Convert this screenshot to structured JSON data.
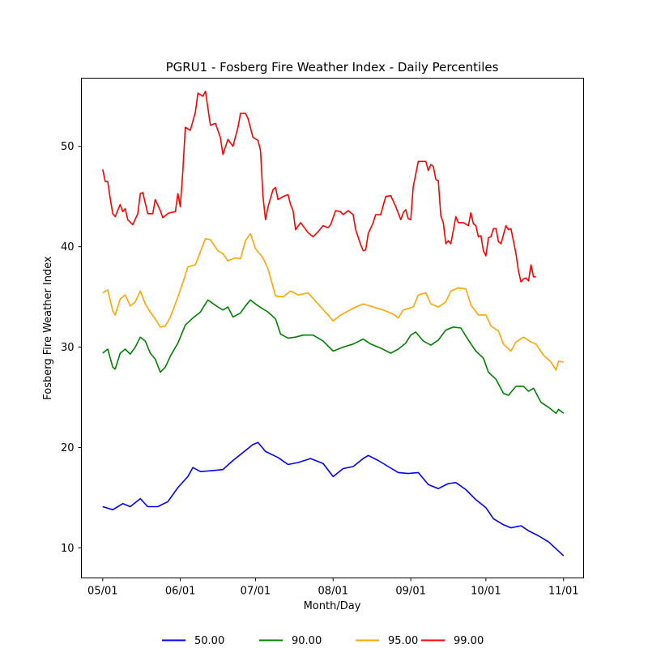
{
  "chart_data": {
    "type": "line",
    "title": "PGRU1 - Fosberg Fire Weather Index - Daily Percentiles",
    "xlabel": "Month/Day",
    "ylabel": "Fosberg Fire Weather Index",
    "x_ticks": [
      {
        "label": "05/01",
        "day": 0
      },
      {
        "label": "06/01",
        "day": 31
      },
      {
        "label": "07/01",
        "day": 61
      },
      {
        "label": "08/01",
        "day": 92
      },
      {
        "label": "09/01",
        "day": 123
      },
      {
        "label": "10/01",
        "day": 153
      },
      {
        "label": "11/01",
        "day": 184
      }
    ],
    "y_ticks": [
      10,
      20,
      30,
      40,
      50
    ],
    "xlim": [
      -8.5,
      192
    ],
    "ylim": [
      7,
      56.8
    ],
    "grid": false,
    "legend_position": "bottom-center",
    "series": [
      {
        "name": "50.00",
        "color": "#0000ff",
        "points": [
          [
            0,
            14.1
          ],
          [
            4,
            13.8
          ],
          [
            8,
            14.4
          ],
          [
            11,
            14.1
          ],
          [
            15,
            14.9
          ],
          [
            18,
            14.1
          ],
          [
            22,
            14.1
          ],
          [
            26,
            14.6
          ],
          [
            30,
            16.0
          ],
          [
            34,
            17.1
          ],
          [
            36,
            18.0
          ],
          [
            39,
            17.6
          ],
          [
            44,
            17.7
          ],
          [
            48,
            17.8
          ],
          [
            52,
            18.7
          ],
          [
            56,
            19.5
          ],
          [
            60,
            20.3
          ],
          [
            62,
            20.5
          ],
          [
            65,
            19.6
          ],
          [
            70,
            19.0
          ],
          [
            74,
            18.3
          ],
          [
            78,
            18.5
          ],
          [
            83,
            18.9
          ],
          [
            88,
            18.4
          ],
          [
            92,
            17.1
          ],
          [
            96,
            17.9
          ],
          [
            100,
            18.1
          ],
          [
            104,
            18.9
          ],
          [
            106,
            19.2
          ],
          [
            110,
            18.7
          ],
          [
            114,
            18.1
          ],
          [
            118,
            17.5
          ],
          [
            122,
            17.4
          ],
          [
            126,
            17.5
          ],
          [
            130,
            16.3
          ],
          [
            134,
            15.9
          ],
          [
            138,
            16.4
          ],
          [
            141,
            16.5
          ],
          [
            145,
            15.8
          ],
          [
            149,
            14.8
          ],
          [
            153,
            14.0
          ],
          [
            156,
            12.9
          ],
          [
            160,
            12.3
          ],
          [
            163,
            12.0
          ],
          [
            167,
            12.2
          ],
          [
            170,
            11.7
          ],
          [
            174,
            11.2
          ],
          [
            178,
            10.6
          ],
          [
            181,
            9.9
          ],
          [
            184,
            9.2
          ]
        ]
      },
      {
        "name": "90.00",
        "color": "#008000",
        "points": [
          [
            0,
            29.4
          ],
          [
            2,
            29.8
          ],
          [
            4,
            28.0
          ],
          [
            5,
            27.8
          ],
          [
            7,
            29.4
          ],
          [
            9,
            29.8
          ],
          [
            11,
            29.3
          ],
          [
            13,
            30.0
          ],
          [
            15,
            31.0
          ],
          [
            17,
            30.6
          ],
          [
            19,
            29.4
          ],
          [
            21,
            28.8
          ],
          [
            23,
            27.5
          ],
          [
            25,
            28.0
          ],
          [
            27,
            29.1
          ],
          [
            30,
            30.4
          ],
          [
            33,
            32.2
          ],
          [
            36,
            32.9
          ],
          [
            39,
            33.5
          ],
          [
            42,
            34.7
          ],
          [
            46,
            34.0
          ],
          [
            48,
            33.7
          ],
          [
            50,
            34.0
          ],
          [
            52,
            33.0
          ],
          [
            55,
            33.4
          ],
          [
            57,
            34.1
          ],
          [
            59,
            34.7
          ],
          [
            61,
            34.3
          ],
          [
            64,
            33.8
          ],
          [
            66,
            33.5
          ],
          [
            69,
            32.8
          ],
          [
            71,
            31.3
          ],
          [
            74,
            30.9
          ],
          [
            77,
            31.0
          ],
          [
            80,
            31.2
          ],
          [
            84,
            31.2
          ],
          [
            88,
            30.6
          ],
          [
            92,
            29.6
          ],
          [
            96,
            30.0
          ],
          [
            100,
            30.3
          ],
          [
            104,
            30.8
          ],
          [
            107,
            30.3
          ],
          [
            111,
            29.9
          ],
          [
            115,
            29.4
          ],
          [
            118,
            29.8
          ],
          [
            121,
            30.4
          ],
          [
            123,
            31.2
          ],
          [
            125,
            31.5
          ],
          [
            128,
            30.6
          ],
          [
            131,
            30.2
          ],
          [
            134,
            30.7
          ],
          [
            137,
            31.7
          ],
          [
            140,
            32.0
          ],
          [
            143,
            31.9
          ],
          [
            146,
            30.7
          ],
          [
            149,
            29.6
          ],
          [
            152,
            28.9
          ],
          [
            154,
            27.5
          ],
          [
            157,
            26.8
          ],
          [
            160,
            25.4
          ],
          [
            162,
            25.2
          ],
          [
            165,
            26.1
          ],
          [
            168,
            26.1
          ],
          [
            170,
            25.6
          ],
          [
            172,
            25.9
          ],
          [
            175,
            24.5
          ],
          [
            178,
            24.0
          ],
          [
            181,
            23.4
          ],
          [
            182,
            23.8
          ],
          [
            184,
            23.4
          ]
        ]
      },
      {
        "name": "95.00",
        "color": "#ffa500",
        "points": [
          [
            0,
            35.4
          ],
          [
            2,
            35.7
          ],
          [
            4,
            33.6
          ],
          [
            5,
            33.2
          ],
          [
            7,
            34.8
          ],
          [
            9,
            35.2
          ],
          [
            11,
            34.1
          ],
          [
            13,
            34.5
          ],
          [
            15,
            35.6
          ],
          [
            17,
            34.3
          ],
          [
            19,
            33.5
          ],
          [
            21,
            32.8
          ],
          [
            23,
            32.0
          ],
          [
            25,
            32.1
          ],
          [
            27,
            33.0
          ],
          [
            30,
            35.0
          ],
          [
            32,
            36.4
          ],
          [
            34,
            38.0
          ],
          [
            37,
            38.2
          ],
          [
            39,
            39.5
          ],
          [
            41,
            40.8
          ],
          [
            43,
            40.7
          ],
          [
            46,
            39.6
          ],
          [
            48,
            39.3
          ],
          [
            50,
            38.6
          ],
          [
            53,
            38.9
          ],
          [
            55,
            38.8
          ],
          [
            57,
            40.6
          ],
          [
            59,
            41.3
          ],
          [
            61,
            39.8
          ],
          [
            64,
            38.9
          ],
          [
            66,
            37.8
          ],
          [
            69,
            35.1
          ],
          [
            72,
            35.0
          ],
          [
            75,
            35.6
          ],
          [
            78,
            35.2
          ],
          [
            82,
            35.4
          ],
          [
            86,
            34.3
          ],
          [
            90,
            33.2
          ],
          [
            92,
            32.6
          ],
          [
            95,
            33.2
          ],
          [
            98,
            33.6
          ],
          [
            101,
            34.0
          ],
          [
            104,
            34.3
          ],
          [
            108,
            34.0
          ],
          [
            112,
            33.7
          ],
          [
            116,
            33.3
          ],
          [
            118,
            32.9
          ],
          [
            120,
            33.7
          ],
          [
            124,
            34.0
          ],
          [
            126,
            35.2
          ],
          [
            129,
            35.4
          ],
          [
            131,
            34.3
          ],
          [
            134,
            34.0
          ],
          [
            137,
            34.5
          ],
          [
            139,
            35.6
          ],
          [
            142,
            35.9
          ],
          [
            145,
            35.8
          ],
          [
            147,
            34.2
          ],
          [
            150,
            33.2
          ],
          [
            153,
            33.2
          ],
          [
            155,
            32.1
          ],
          [
            158,
            31.6
          ],
          [
            160,
            30.3
          ],
          [
            163,
            29.6
          ],
          [
            165,
            30.5
          ],
          [
            168,
            31.0
          ],
          [
            171,
            30.5
          ],
          [
            173,
            30.3
          ],
          [
            176,
            29.2
          ],
          [
            179,
            28.5
          ],
          [
            181,
            27.7
          ],
          [
            182,
            28.6
          ],
          [
            184,
            28.5
          ]
        ]
      },
      {
        "name": "99.00",
        "color": "#ff0000",
        "points": [
          [
            0,
            47.7
          ],
          [
            1,
            46.5
          ],
          [
            2,
            46.5
          ],
          [
            3,
            44.8
          ],
          [
            4,
            43.3
          ],
          [
            5,
            43.0
          ],
          [
            7,
            44.2
          ],
          [
            8,
            43.5
          ],
          [
            9,
            43.8
          ],
          [
            10,
            42.7
          ],
          [
            12,
            42.2
          ],
          [
            14,
            43.3
          ],
          [
            15,
            45.3
          ],
          [
            16,
            45.4
          ],
          [
            18,
            43.3
          ],
          [
            20,
            43.3
          ],
          [
            21,
            44.7
          ],
          [
            23,
            43.6
          ],
          [
            24,
            42.9
          ],
          [
            26,
            43.3
          ],
          [
            27,
            43.4
          ],
          [
            29,
            43.5
          ],
          [
            30,
            45.3
          ],
          [
            31,
            44.0
          ],
          [
            32,
            47.5
          ],
          [
            33,
            51.9
          ],
          [
            35,
            51.6
          ],
          [
            37,
            53.4
          ],
          [
            38,
            55.3
          ],
          [
            40,
            55.0
          ],
          [
            41,
            55.5
          ],
          [
            43,
            52.1
          ],
          [
            45,
            52.3
          ],
          [
            47,
            50.9
          ],
          [
            48,
            49.2
          ],
          [
            50,
            50.7
          ],
          [
            52,
            50.0
          ],
          [
            54,
            51.9
          ],
          [
            55,
            53.3
          ],
          [
            57,
            53.3
          ],
          [
            58,
            52.8
          ],
          [
            60,
            50.9
          ],
          [
            62,
            50.6
          ],
          [
            63,
            49.6
          ],
          [
            64,
            45.0
          ],
          [
            65,
            42.7
          ],
          [
            66,
            44.0
          ],
          [
            68,
            45.7
          ],
          [
            69,
            45.9
          ],
          [
            70,
            44.7
          ],
          [
            72,
            45.0
          ],
          [
            74,
            45.2
          ],
          [
            75,
            44.2
          ],
          [
            76,
            43.6
          ],
          [
            77,
            41.7
          ],
          [
            79,
            42.4
          ],
          [
            82,
            41.4
          ],
          [
            84,
            41.0
          ],
          [
            86,
            41.5
          ],
          [
            88,
            42.1
          ],
          [
            90,
            41.9
          ],
          [
            91,
            42.2
          ],
          [
            93,
            43.6
          ],
          [
            95,
            43.5
          ],
          [
            96,
            43.2
          ],
          [
            98,
            43.6
          ],
          [
            100,
            43.2
          ],
          [
            101,
            41.7
          ],
          [
            103,
            40.2
          ],
          [
            104,
            39.6
          ],
          [
            105,
            39.7
          ],
          [
            106,
            41.3
          ],
          [
            108,
            42.4
          ],
          [
            109,
            43.2
          ],
          [
            111,
            43.2
          ],
          [
            113,
            45.0
          ],
          [
            115,
            45.1
          ],
          [
            117,
            44.0
          ],
          [
            119,
            42.7
          ],
          [
            120,
            43.4
          ],
          [
            121,
            43.7
          ],
          [
            122,
            42.8
          ],
          [
            123,
            42.7
          ],
          [
            124,
            46.0
          ],
          [
            126,
            48.5
          ],
          [
            129,
            48.5
          ],
          [
            130,
            47.6
          ],
          [
            131,
            48.2
          ],
          [
            132,
            48.0
          ],
          [
            133,
            46.7
          ],
          [
            134,
            46.6
          ],
          [
            135,
            43.1
          ],
          [
            136,
            42.4
          ],
          [
            137,
            40.3
          ],
          [
            138,
            40.6
          ],
          [
            139,
            40.3
          ],
          [
            141,
            43.0
          ],
          [
            142,
            42.4
          ],
          [
            144,
            42.4
          ],
          [
            146,
            42.1
          ],
          [
            147,
            43.4
          ],
          [
            148,
            42.3
          ],
          [
            149,
            42.1
          ],
          [
            150,
            41.0
          ],
          [
            151,
            41.1
          ],
          [
            152,
            39.6
          ],
          [
            153,
            39.1
          ],
          [
            154,
            40.9
          ],
          [
            155,
            41.0
          ],
          [
            156,
            41.8
          ],
          [
            157,
            41.8
          ],
          [
            158,
            40.5
          ],
          [
            159,
            40.3
          ],
          [
            161,
            42.1
          ],
          [
            162,
            41.7
          ],
          [
            163,
            41.8
          ],
          [
            165,
            39.3
          ],
          [
            166,
            37.6
          ],
          [
            167,
            36.5
          ],
          [
            168,
            36.8
          ],
          [
            169,
            36.9
          ],
          [
            170,
            36.6
          ],
          [
            171,
            38.2
          ],
          [
            172,
            37.0
          ],
          [
            173,
            37.0
          ]
        ]
      }
    ]
  }
}
